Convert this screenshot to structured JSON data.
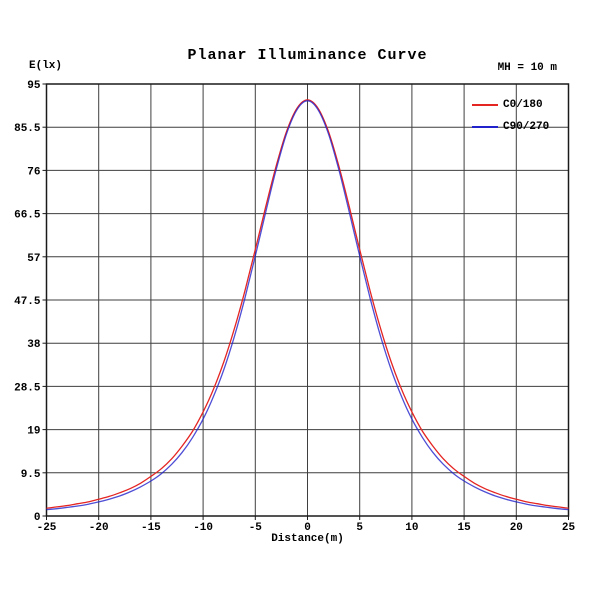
{
  "title": "Planar Illuminance Curve",
  "header": {
    "mh_label": "MH = 10 m"
  },
  "axes": {
    "y_unit_label": "E(lx)",
    "x_axis_label": "Distance(m)"
  },
  "legend": [
    {
      "label": "C0/180",
      "color": "#e42522"
    },
    {
      "label": "C90/270",
      "color": "#2222cc"
    }
  ],
  "colors": {
    "background": "#ffffff",
    "grid": "#3f3f3f",
    "border": "#1a1a1a",
    "text": "#000000",
    "curve_c0": "#e42522",
    "curve_c90": "#2222cc"
  },
  "chart_data": {
    "type": "line",
    "title": "Planar Illuminance Curve",
    "xlabel": "Distance(m)",
    "ylabel": "E(lx)",
    "annotation": "MH = 10 m",
    "xlim": [
      -25,
      25
    ],
    "ylim": [
      0,
      95
    ],
    "x_ticks": [
      -25,
      -20,
      -15,
      -10,
      -5,
      0,
      5,
      10,
      15,
      20,
      25
    ],
    "y_ticks": [
      0,
      9.5,
      19,
      28.5,
      38,
      47.5,
      57,
      66.5,
      76,
      85.5,
      95
    ],
    "grid": true,
    "legend_position": "top-right-inside",
    "x": [
      -25,
      -24,
      -23,
      -22,
      -21,
      -20,
      -19,
      -18,
      -17,
      -16,
      -15,
      -14,
      -13,
      -12,
      -11,
      -10,
      -9,
      -8,
      -7,
      -6,
      -5,
      -4,
      -3,
      -2,
      -1,
      0,
      1,
      2,
      3,
      4,
      5,
      6,
      7,
      8,
      9,
      10,
      11,
      12,
      13,
      14,
      15,
      16,
      17,
      18,
      19,
      20,
      21,
      22,
      23,
      24,
      25
    ],
    "series": [
      {
        "name": "C0/180",
        "color": "#e42522",
        "values": [
          1.7,
          2.0,
          2.3,
          2.7,
          3.1,
          3.7,
          4.3,
          5.1,
          6.0,
          7.2,
          8.7,
          10.4,
          12.6,
          15.4,
          18.7,
          22.9,
          27.9,
          34.0,
          41.2,
          49.5,
          58.6,
          68.0,
          77.0,
          84.6,
          89.7,
          91.5,
          89.7,
          84.6,
          77.0,
          68.0,
          58.6,
          49.5,
          41.2,
          34.0,
          27.9,
          22.9,
          18.7,
          15.4,
          12.6,
          10.4,
          8.7,
          7.2,
          6.0,
          5.1,
          4.3,
          3.7,
          3.1,
          2.7,
          2.3,
          2.0,
          1.7
        ]
      },
      {
        "name": "C90/270",
        "color": "#2222cc",
        "values": [
          1.4,
          1.6,
          1.9,
          2.2,
          2.6,
          3.1,
          3.7,
          4.4,
          5.3,
          6.4,
          7.7,
          9.3,
          11.4,
          14.0,
          17.3,
          21.3,
          26.3,
          32.3,
          39.5,
          47.9,
          57.2,
          66.8,
          76.2,
          84.1,
          89.4,
          91.3,
          89.4,
          84.1,
          76.2,
          66.8,
          57.2,
          47.9,
          39.5,
          32.3,
          26.3,
          21.3,
          17.3,
          14.0,
          11.4,
          9.3,
          7.7,
          6.4,
          5.3,
          4.4,
          3.7,
          3.1,
          2.6,
          2.2,
          1.9,
          1.6,
          1.4
        ]
      }
    ]
  }
}
